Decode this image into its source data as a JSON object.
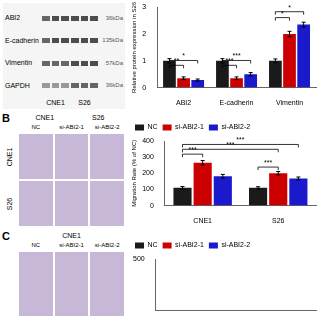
{
  "chart_data": [
    {
      "type": "blot",
      "categories": [
        "ABI2",
        "E-cadherin",
        "Vimentin",
        "GAPDH"
      ],
      "annotations": [
        "36kDa",
        "135kDa",
        "57kDa",
        "36kDa",
        "CNE1",
        "S26"
      ]
    },
    {
      "type": "bar",
      "ylabel": "Relative protein expression in S26",
      "categories": [
        "ABI2",
        "E-cadherin",
        "Vimentin"
      ],
      "series": [
        {
          "color": "#1a1a1a",
          "values": [
            1.0,
            1.0,
            1.0
          ],
          "errors": [
            0.08,
            0.08,
            0.07
          ]
        },
        {
          "color": "#cc0000",
          "values": [
            0.35,
            0.35,
            2.0
          ],
          "errors": [
            0.05,
            0.05,
            0.1
          ]
        },
        {
          "color": "#1a1acc",
          "values": [
            0.28,
            0.5,
            2.35
          ],
          "errors": [
            0.04,
            0.06,
            0.09
          ]
        }
      ],
      "ylim": [
        0,
        3.0
      ],
      "yticks": [
        0,
        1,
        2,
        3
      ],
      "grid": false,
      "annotations": [
        {
          "text": "**",
          "y": 0.72,
          "from": {
            "category": "ABI2",
            "series": 0
          },
          "to": {
            "category": "ABI2",
            "series": 1
          }
        },
        {
          "text": "*",
          "y": 0.9,
          "from": {
            "category": "ABI2",
            "series": 0
          },
          "to": {
            "category": "ABI2",
            "series": 2
          }
        },
        {
          "text": "***",
          "y": 0.72,
          "from": {
            "category": "E-cadherin",
            "series": 0
          },
          "to": {
            "category": "E-cadherin",
            "series": 1
          }
        },
        {
          "text": "***",
          "y": 0.9,
          "from": {
            "category": "E-cadherin",
            "series": 0
          },
          "to": {
            "category": "E-cadherin",
            "series": 2
          }
        },
        {
          "text": "*",
          "y": 2.5,
          "from": {
            "category": "Vimentin",
            "series": 0
          },
          "to": {
            "category": "Vimentin",
            "series": 1
          }
        },
        {
          "text": "*",
          "y": 2.72,
          "from": {
            "category": "Vimentin",
            "series": 0
          },
          "to": {
            "category": "Vimentin",
            "series": 2
          }
        }
      ]
    },
    {
      "type": "image",
      "title": "B",
      "categories": [
        "NC",
        "si-ABI2-1",
        "si-ABI2-2"
      ],
      "annotations": [
        "CNE1",
        "S26",
        "CNE1",
        "S26"
      ]
    },
    {
      "type": "bar",
      "ylabel": "Migration Rate (% of NC)",
      "categories": [
        "CNE1",
        "S26"
      ],
      "series": [
        {
          "name": "NC",
          "color": "#1a1a1a",
          "values": [
            110,
            110
          ],
          "errors": [
            8,
            7
          ]
        },
        {
          "name": "si-ABI2-1",
          "color": "#cc0000",
          "values": [
            265,
            200
          ],
          "errors": [
            14,
            11
          ]
        },
        {
          "name": "si-ABI2-2",
          "color": "#1a1acc",
          "values": [
            182,
            168
          ],
          "errors": [
            11,
            9
          ]
        }
      ],
      "ylim": [
        0,
        400
      ],
      "yticks": [
        0,
        100,
        200,
        300,
        400
      ],
      "grid": false,
      "legend": "upper left",
      "annotations": [
        {
          "text": "***",
          "y": 300,
          "from": {
            "category": "CNE1",
            "series": 0
          },
          "to": {
            "category": "CNE1",
            "series": 1
          }
        },
        {
          "text": "***",
          "y": 360,
          "from": {
            "category": "CNE1",
            "series": 0
          },
          "to": {
            "category": "S26",
            "series": 2
          }
        },
        {
          "text": "***",
          "y": 330,
          "from": {
            "category": "CNE1",
            "series": 0
          },
          "to": {
            "category": "S26",
            "series": 1
          }
        },
        {
          "text": "***",
          "y": 220,
          "from": {
            "category": "S26",
            "series": 0
          },
          "to": {
            "category": "S26",
            "series": 1
          }
        }
      ]
    },
    {
      "type": "image",
      "title": "C",
      "categories": [
        "NC",
        "si-ABI2-1",
        "si-ABI2-2"
      ],
      "annotations": [
        "CNE1"
      ]
    },
    {
      "type": "bar",
      "categories": [],
      "series": [
        {
          "name": "NC",
          "color": "#1a1a1a",
          "values": []
        },
        {
          "name": "si-ABI2-1",
          "color": "#cc0000",
          "values": []
        },
        {
          "name": "si-ABI2-2",
          "color": "#1a1acc",
          "values": []
        }
      ],
      "ylim": [
        0,
        500
      ],
      "yticks": [
        500
      ],
      "grid": false,
      "legend": "upper left",
      "tick_labels": "y"
    }
  ]
}
